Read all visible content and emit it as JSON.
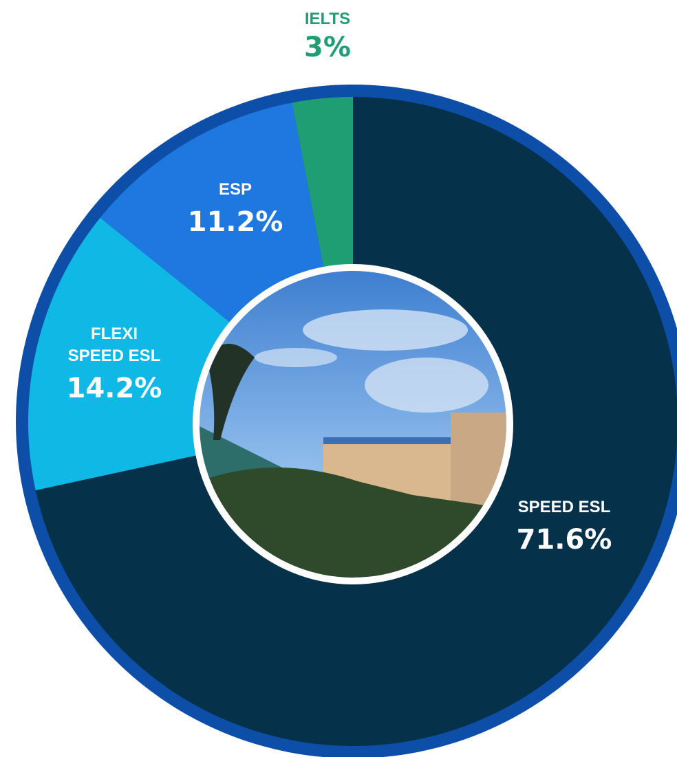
{
  "chart_data": {
    "type": "donut",
    "categories": [
      "SPEED ESL",
      "FLEXI SPEED ESL",
      "ESP",
      "IELTS"
    ],
    "values": [
      71.6,
      14.2,
      11.2,
      3
    ],
    "value_labels": [
      "71.6%",
      "14.2%",
      "11.2%",
      "3%"
    ],
    "colors": [
      "#05314a",
      "#10b8e6",
      "#1f77e0",
      "#1f9e74"
    ]
  }
}
